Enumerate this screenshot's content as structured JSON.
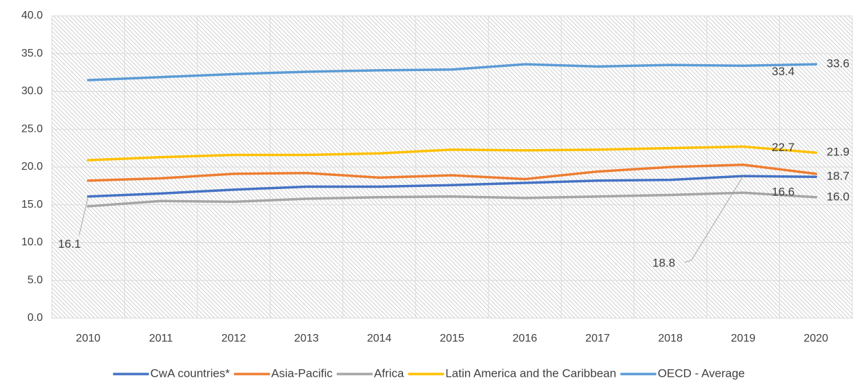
{
  "chart_data": {
    "type": "line",
    "categories": [
      "2010",
      "2011",
      "2012",
      "2013",
      "2014",
      "2015",
      "2016",
      "2017",
      "2018",
      "2019",
      "2020"
    ],
    "ylim": [
      0,
      40
    ],
    "yticks": [
      {
        "value": 0,
        "label": "0.0"
      },
      {
        "value": 5,
        "label": "5.0"
      },
      {
        "value": 10,
        "label": "10.0"
      },
      {
        "value": 15,
        "label": "15.0"
      },
      {
        "value": 20,
        "label": "20.0"
      },
      {
        "value": 25,
        "label": "25.0"
      },
      {
        "value": 30,
        "label": "30.0"
      },
      {
        "value": 35,
        "label": "35.0"
      },
      {
        "value": 40,
        "label": "40.0"
      }
    ],
    "grid": true,
    "legend": "bottom",
    "series": [
      {
        "name": "CwA countries*",
        "color": "#4472c4",
        "values": [
          16.1,
          16.5,
          17.0,
          17.4,
          17.4,
          17.6,
          17.9,
          18.2,
          18.3,
          18.8,
          18.7
        ],
        "value_labels": [
          "16.1",
          null,
          null,
          null,
          null,
          null,
          null,
          null,
          null,
          "18.8",
          "18.7"
        ]
      },
      {
        "name": "Asia-Pacific",
        "color": "#ed7d31",
        "values": [
          18.2,
          18.5,
          19.1,
          19.2,
          18.6,
          18.9,
          18.4,
          19.4,
          20.0,
          20.3,
          19.1
        ]
      },
      {
        "name": "Africa",
        "color": "#a5a5a5",
        "values": [
          14.8,
          15.5,
          15.4,
          15.8,
          16.0,
          16.1,
          15.9,
          16.1,
          16.3,
          16.6,
          16.0
        ],
        "value_labels": [
          null,
          null,
          null,
          null,
          null,
          null,
          null,
          null,
          null,
          "16.6",
          "16.0"
        ]
      },
      {
        "name": "Latin America and the Caribbean",
        "color": "#ffc000",
        "values": [
          20.9,
          21.3,
          21.6,
          21.6,
          21.8,
          22.3,
          22.2,
          22.3,
          22.5,
          22.7,
          21.9
        ],
        "value_labels": [
          null,
          null,
          null,
          null,
          null,
          null,
          null,
          null,
          null,
          "22.7",
          "21.9"
        ]
      },
      {
        "name": "OECD - Average",
        "color": "#5b9bd5",
        "values": [
          31.5,
          31.9,
          32.3,
          32.6,
          32.8,
          32.9,
          33.6,
          33.3,
          33.5,
          33.4,
          33.6
        ],
        "value_labels": [
          null,
          null,
          null,
          null,
          null,
          null,
          null,
          null,
          null,
          "33.4",
          "33.6"
        ]
      }
    ]
  }
}
